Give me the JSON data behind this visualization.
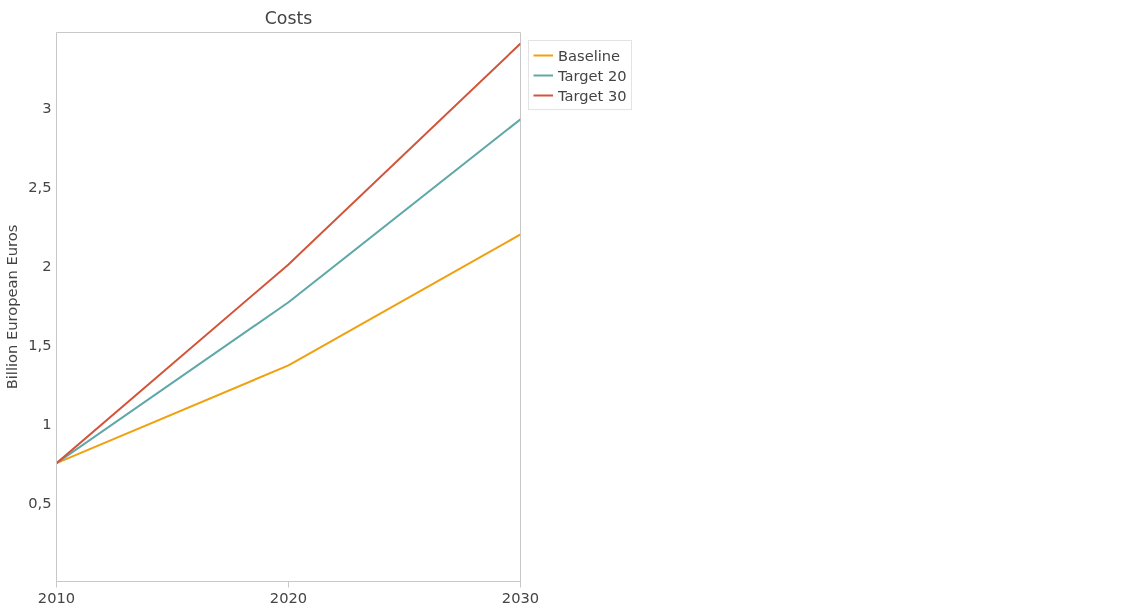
{
  "chart_data": {
    "type": "line",
    "title": "Costs",
    "ylabel": "Billion European Euros",
    "x": [
      2010,
      2020,
      2030
    ],
    "series": [
      {
        "name": "Baseline",
        "color": "#f0a010",
        "values": [
          0.75,
          1.37,
          2.2
        ]
      },
      {
        "name": "Target 20",
        "color": "#5ea8a7",
        "values": [
          0.75,
          1.77,
          2.93
        ]
      },
      {
        "name": "Target 30",
        "color": "#d2553a",
        "values": [
          0.75,
          2.01,
          3.41
        ]
      }
    ],
    "xlim": [
      2010,
      2030
    ],
    "xticks": [
      2010,
      2020,
      2030
    ],
    "ylim": [
      0,
      3.48
    ],
    "yticks": [
      {
        "value": 0.5,
        "label": "0,5"
      },
      1,
      {
        "value": 1.5,
        "label": "1,5"
      },
      2,
      {
        "value": 2.5,
        "label": "2,5"
      },
      3
    ],
    "grid": false,
    "legend": "top right",
    "marker": "none",
    "line_style": "solid"
  }
}
